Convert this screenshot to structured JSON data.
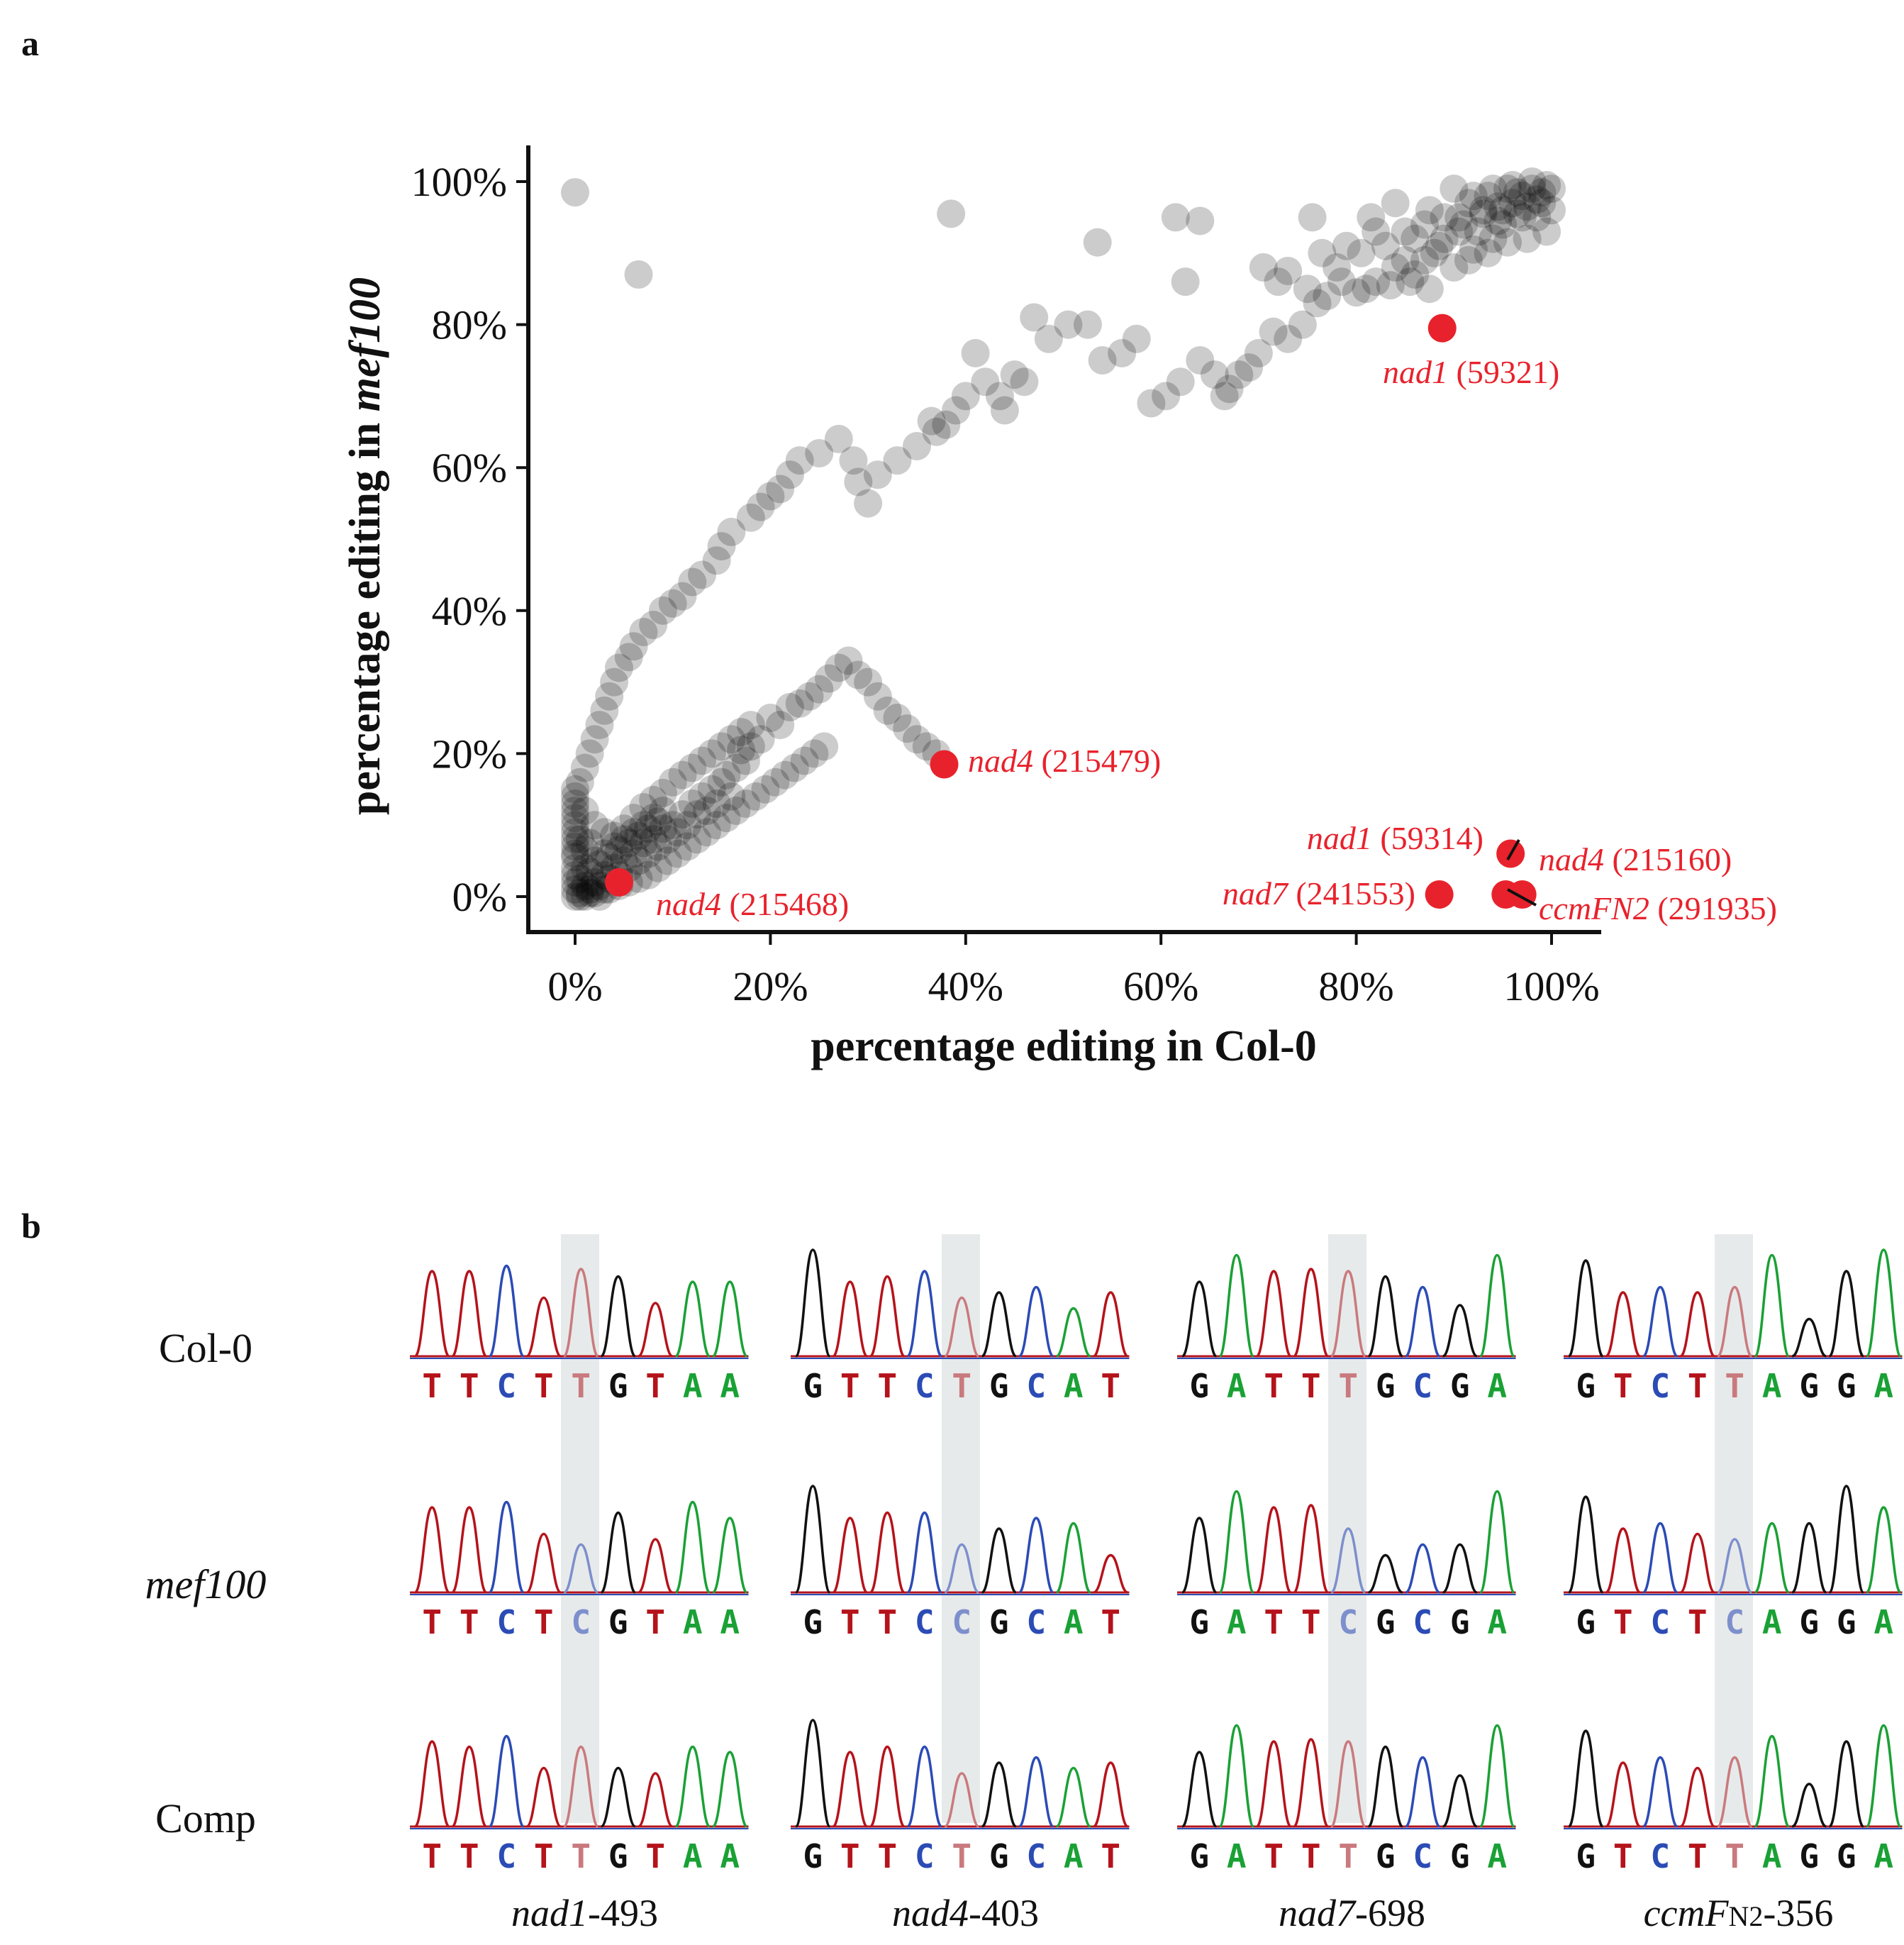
{
  "panel_a": {
    "letter": "a",
    "chart_data": {
      "type": "scatter",
      "title": "",
      "xlabel": "percentage editing in Col-0",
      "ylabel_prefix": "percentage editing in ",
      "ylabel_italic": "mef100",
      "xlim": [
        -5,
        105
      ],
      "ylim": [
        -5,
        105
      ],
      "xticks": [
        0,
        20,
        40,
        60,
        80,
        100
      ],
      "yticks": [
        0,
        20,
        40,
        60,
        80,
        100
      ],
      "xtick_labels": [
        "0%",
        "20%",
        "40%",
        "60%",
        "80%",
        "100%"
      ],
      "ytick_labels": [
        "0%",
        "20%",
        "40%",
        "60%",
        "80%",
        "100%"
      ],
      "grid": false,
      "point_color": "#000000",
      "point_opacity": 0.2,
      "highlight_color": "#e8222c",
      "background_points": [
        [
          0,
          98.5
        ],
        [
          6.5,
          87
        ],
        [
          38.5,
          95.5
        ],
        [
          53.5,
          91.5
        ],
        [
          61.5,
          95
        ],
        [
          62.5,
          86
        ],
        [
          64,
          94.5
        ],
        [
          70.5,
          88
        ],
        [
          72,
          86
        ],
        [
          73,
          87.5
        ],
        [
          75,
          85
        ],
        [
          75.5,
          95
        ],
        [
          76.5,
          90
        ],
        [
          78,
          88
        ],
        [
          79,
          91
        ],
        [
          81.5,
          95
        ],
        [
          82,
          93
        ],
        [
          84,
          97
        ],
        [
          85,
          89
        ],
        [
          86,
          92
        ],
        [
          87.5,
          96
        ],
        [
          88,
          90
        ],
        [
          89,
          95
        ],
        [
          90,
          99
        ],
        [
          90.5,
          93
        ],
        [
          91.5,
          97
        ],
        [
          92,
          90.5
        ],
        [
          93,
          95.5
        ],
        [
          93.5,
          98
        ],
        [
          94,
          92
        ],
        [
          94.5,
          96.5
        ],
        [
          95,
          94
        ],
        [
          95.5,
          99
        ],
        [
          96,
          97
        ],
        [
          96.5,
          95.5
        ],
        [
          97,
          98
        ],
        [
          97.5,
          96.5
        ],
        [
          98,
          99
        ],
        [
          98.5,
          97.5
        ],
        [
          99,
          98.5
        ],
        [
          99.5,
          99.5
        ],
        [
          100,
          99
        ],
        [
          99,
          97
        ],
        [
          97,
          95
        ],
        [
          95,
          96
        ],
        [
          92,
          98
        ],
        [
          94,
          99
        ],
        [
          96,
          99.5
        ],
        [
          98,
          100
        ],
        [
          93,
          96
        ],
        [
          91,
          94
        ],
        [
          89,
          92
        ],
        [
          87,
          89
        ],
        [
          86,
          87
        ],
        [
          84,
          88
        ],
        [
          82,
          86
        ],
        [
          80.5,
          90
        ],
        [
          83,
          91
        ],
        [
          85,
          93
        ],
        [
          87,
          94
        ],
        [
          88.5,
          91
        ],
        [
          90.5,
          95
        ],
        [
          92.5,
          93
        ],
        [
          94.5,
          94.5
        ],
        [
          96.5,
          98.5
        ],
        [
          98.5,
          95
        ],
        [
          100,
          96
        ],
        [
          99.5,
          93
        ],
        [
          97.5,
          92
        ],
        [
          95.5,
          91.5
        ],
        [
          93.5,
          90
        ],
        [
          91.5,
          89
        ],
        [
          90,
          88
        ],
        [
          87.5,
          85
        ],
        [
          85.5,
          86
        ],
        [
          83.5,
          85.5
        ],
        [
          81,
          85
        ],
        [
          80,
          84.5
        ],
        [
          78.5,
          86
        ],
        [
          77,
          84
        ],
        [
          76,
          83
        ],
        [
          74.5,
          80
        ],
        [
          73,
          78
        ],
        [
          71.5,
          79
        ],
        [
          70,
          76
        ],
        [
          69,
          74
        ],
        [
          68,
          73
        ],
        [
          67,
          71
        ],
        [
          66.5,
          70
        ],
        [
          65.5,
          73
        ],
        [
          64,
          75
        ],
        [
          62,
          72
        ],
        [
          60.5,
          70
        ],
        [
          59,
          69
        ],
        [
          57.5,
          78
        ],
        [
          56,
          76
        ],
        [
          54,
          75
        ],
        [
          52.5,
          80
        ],
        [
          50.5,
          80
        ],
        [
          48.5,
          78
        ],
        [
          47,
          81
        ],
        [
          46,
          72
        ],
        [
          45,
          73
        ],
        [
          44,
          68
        ],
        [
          43.5,
          70
        ],
        [
          42,
          72
        ],
        [
          41,
          76
        ],
        [
          40,
          70
        ],
        [
          39,
          68
        ],
        [
          38,
          66
        ],
        [
          37,
          65
        ],
        [
          36.5,
          66.5
        ],
        [
          35,
          63
        ],
        [
          33,
          61
        ],
        [
          31,
          59
        ],
        [
          30,
          55
        ],
        [
          29,
          58
        ],
        [
          28.5,
          61
        ],
        [
          27,
          64
        ],
        [
          25,
          62
        ],
        [
          23,
          61
        ],
        [
          22,
          59
        ],
        [
          21,
          57
        ],
        [
          20,
          56
        ],
        [
          19,
          54.5
        ],
        [
          18,
          53
        ],
        [
          16,
          51
        ],
        [
          15,
          49
        ],
        [
          14.5,
          47
        ],
        [
          13,
          45
        ],
        [
          12,
          44
        ],
        [
          11,
          42
        ],
        [
          10,
          41
        ],
        [
          9,
          40
        ],
        [
          8,
          38
        ],
        [
          7,
          37
        ],
        [
          6,
          35
        ],
        [
          5.5,
          33.5
        ],
        [
          4.5,
          32
        ],
        [
          4,
          30
        ],
        [
          3.5,
          28
        ],
        [
          3,
          26
        ],
        [
          2.5,
          24
        ],
        [
          2,
          22
        ],
        [
          1.5,
          20
        ],
        [
          1,
          18
        ],
        [
          0.5,
          16
        ],
        [
          0,
          14
        ],
        [
          0,
          12
        ],
        [
          0,
          10
        ],
        [
          0,
          8
        ],
        [
          0,
          6
        ],
        [
          0,
          4
        ],
        [
          0,
          2
        ],
        [
          0,
          0
        ],
        [
          0,
          1
        ],
        [
          0.5,
          0.5
        ],
        [
          1,
          0
        ],
        [
          1,
          1.5
        ],
        [
          1.5,
          1
        ],
        [
          2,
          2
        ],
        [
          2,
          0.5
        ],
        [
          2.5,
          1.5
        ],
        [
          3,
          3
        ],
        [
          3,
          1
        ],
        [
          3.5,
          2.5
        ],
        [
          4,
          4
        ],
        [
          4.5,
          3
        ],
        [
          5,
          5
        ],
        [
          5.5,
          4
        ],
        [
          6,
          6
        ],
        [
          6.5,
          5
        ],
        [
          7,
          7.5
        ],
        [
          7.5,
          6
        ],
        [
          8,
          8
        ],
        [
          8.5,
          7
        ],
        [
          9,
          9.5
        ],
        [
          9.5,
          8
        ],
        [
          10,
          10
        ],
        [
          10.5,
          9
        ],
        [
          11,
          11.5
        ],
        [
          11.5,
          10
        ],
        [
          12,
          13
        ],
        [
          12.5,
          11.5
        ],
        [
          13,
          14
        ],
        [
          13.5,
          12
        ],
        [
          14,
          15
        ],
        [
          14.5,
          13
        ],
        [
          15,
          16
        ],
        [
          15.5,
          17
        ],
        [
          16,
          14
        ],
        [
          16.5,
          18
        ],
        [
          17,
          20.5
        ],
        [
          17.5,
          19
        ],
        [
          18,
          21
        ],
        [
          19,
          22
        ],
        [
          20,
          25
        ],
        [
          21,
          24
        ],
        [
          22,
          26.5
        ],
        [
          23,
          27
        ],
        [
          24,
          28
        ],
        [
          25,
          29
        ],
        [
          26,
          30.5
        ],
        [
          27,
          32
        ],
        [
          28,
          33
        ],
        [
          29,
          31
        ],
        [
          30,
          30
        ],
        [
          31,
          28
        ],
        [
          32,
          26
        ],
        [
          33,
          25
        ],
        [
          34,
          23.5
        ],
        [
          35,
          22
        ],
        [
          36,
          21
        ],
        [
          37,
          20
        ],
        [
          0,
          3
        ],
        [
          0.5,
          2.5
        ],
        [
          1,
          4
        ],
        [
          1.5,
          3.5
        ],
        [
          2,
          5
        ],
        [
          2.5,
          4.5
        ],
        [
          3,
          6
        ],
        [
          3.5,
          5.5
        ],
        [
          4,
          7
        ],
        [
          4.5,
          6.5
        ],
        [
          5,
          8
        ],
        [
          5.5,
          7.5
        ],
        [
          6,
          9
        ],
        [
          6.5,
          8.5
        ],
        [
          7,
          10
        ],
        [
          7.5,
          9.5
        ],
        [
          8,
          11
        ],
        [
          8.5,
          10.5
        ],
        [
          9,
          12
        ],
        [
          0,
          5.5
        ],
        [
          0,
          7
        ],
        [
          0.5,
          8
        ],
        [
          1,
          6.5
        ],
        [
          1.5,
          7.5
        ],
        [
          0,
          9
        ],
        [
          0,
          11
        ],
        [
          0,
          13
        ],
        [
          0,
          15
        ],
        [
          1,
          12
        ],
        [
          2,
          10
        ],
        [
          3,
          9
        ],
        [
          4,
          8.5
        ],
        [
          5,
          9.5
        ],
        [
          6,
          11
        ],
        [
          7,
          12.5
        ],
        [
          8,
          13.5
        ],
        [
          9,
          14.5
        ],
        [
          10,
          16
        ],
        [
          11,
          17
        ],
        [
          12,
          18
        ],
        [
          13,
          19
        ],
        [
          14,
          20
        ],
        [
          15,
          21
        ],
        [
          16,
          22
        ],
        [
          17,
          23
        ],
        [
          18,
          24
        ],
        [
          0.5,
          0
        ],
        [
          1.5,
          0.5
        ],
        [
          2.5,
          0
        ],
        [
          3.5,
          1
        ],
        [
          4.5,
          1.5
        ],
        [
          5.5,
          2
        ],
        [
          6.5,
          2.5
        ],
        [
          7.5,
          3
        ],
        [
          8.5,
          4
        ],
        [
          9.5,
          5
        ],
        [
          10.5,
          6
        ],
        [
          11.5,
          7
        ],
        [
          12.5,
          8
        ],
        [
          13.5,
          9
        ],
        [
          14.5,
          10
        ],
        [
          15.5,
          11
        ],
        [
          16.5,
          12
        ],
        [
          17.5,
          13
        ],
        [
          18.5,
          14
        ],
        [
          19.5,
          15
        ],
        [
          20.5,
          16
        ],
        [
          21.5,
          17
        ],
        [
          22.5,
          18
        ],
        [
          23.5,
          19
        ],
        [
          24.5,
          20
        ],
        [
          25.5,
          21
        ]
      ],
      "highlighted_points": [
        {
          "x": 4.5,
          "y": 2,
          "gene": "nad4",
          "position": "(215468)"
        },
        {
          "x": 37.8,
          "y": 18.5,
          "gene": "nad4",
          "position": "(215479)"
        },
        {
          "x": 88.8,
          "y": 79.5,
          "gene": "nad1",
          "position": "(59321)"
        },
        {
          "x": 95.8,
          "y": 6,
          "gene": "nad1",
          "position": "(59314)"
        },
        {
          "x": 88.5,
          "y": 0.3,
          "gene": "nad7",
          "position": "(241553)"
        },
        {
          "x": 97,
          "y": 0.3,
          "gene": "nad4",
          "position": "(215160)"
        },
        {
          "x": 95.3,
          "y": 0.3,
          "gene": "ccmFN2",
          "position": "(291935)"
        }
      ]
    }
  },
  "panel_b": {
    "letter": "b",
    "row_labels": [
      "Col-0",
      "mef100",
      "Comp"
    ],
    "column_labels": [
      {
        "gene": "nad1",
        "suffix": "-493"
      },
      {
        "gene": "nad4",
        "suffix": "-403"
      },
      {
        "gene": "nad7",
        "suffix": "-698"
      },
      {
        "gene": "ccmF",
        "sub": "N2",
        "suffix": "-356"
      }
    ],
    "base_colors": {
      "A": "#1aa135",
      "C": "#2b4bb5",
      "G": "#111111",
      "T": "#b5131b"
    },
    "edited_base_colors": {
      "T": "#c97a7e",
      "C": "#7d8fcc"
    },
    "highlight_column_color": "#dfe3e3",
    "sequences": [
      [
        "TTCTTGTAA",
        "GTTCTGCAT",
        "GATTTGCGA",
        "GTCTTAGGA"
      ],
      [
        "TTCTCGTAA",
        "GTTCCGCAT",
        "GATTCGCGA",
        "GTCTCAGGA"
      ],
      [
        "TTCTTGTAA",
        "GTTCTGCAT",
        "GATTTGCGA",
        "GTCTTAGGA"
      ]
    ],
    "edited_index": [
      4,
      4,
      4,
      4
    ],
    "peak_heights": [
      [
        [
          0.8,
          0.8,
          0.85,
          0.55,
          0.82,
          0.75,
          0.5,
          0.7,
          0.7
        ],
        [
          1.0,
          0.7,
          0.75,
          0.8,
          0.55,
          0.6,
          0.65,
          0.45,
          0.6
        ],
        [
          0.7,
          0.95,
          0.8,
          0.82,
          0.8,
          0.75,
          0.65,
          0.48,
          0.95
        ],
        [
          0.9,
          0.6,
          0.65,
          0.6,
          0.65,
          0.95,
          0.35,
          0.8,
          1.0
        ]
      ],
      [
        [
          0.8,
          0.8,
          0.85,
          0.55,
          0.45,
          0.75,
          0.5,
          0.85,
          0.7
        ],
        [
          1.0,
          0.7,
          0.75,
          0.75,
          0.45,
          0.6,
          0.7,
          0.65,
          0.35
        ],
        [
          0.7,
          0.95,
          0.8,
          0.82,
          0.6,
          0.35,
          0.45,
          0.45,
          0.95
        ],
        [
          0.9,
          0.6,
          0.65,
          0.55,
          0.5,
          0.65,
          0.65,
          1.0,
          0.8
        ]
      ],
      [
        [
          0.8,
          0.75,
          0.85,
          0.55,
          0.75,
          0.55,
          0.5,
          0.75,
          0.7
        ],
        [
          1.0,
          0.7,
          0.75,
          0.75,
          0.5,
          0.6,
          0.65,
          0.55,
          0.6
        ],
        [
          0.7,
          0.95,
          0.8,
          0.82,
          0.8,
          0.75,
          0.65,
          0.48,
          0.95
        ],
        [
          0.9,
          0.6,
          0.65,
          0.55,
          0.65,
          0.85,
          0.4,
          0.8,
          0.95
        ]
      ]
    ]
  }
}
